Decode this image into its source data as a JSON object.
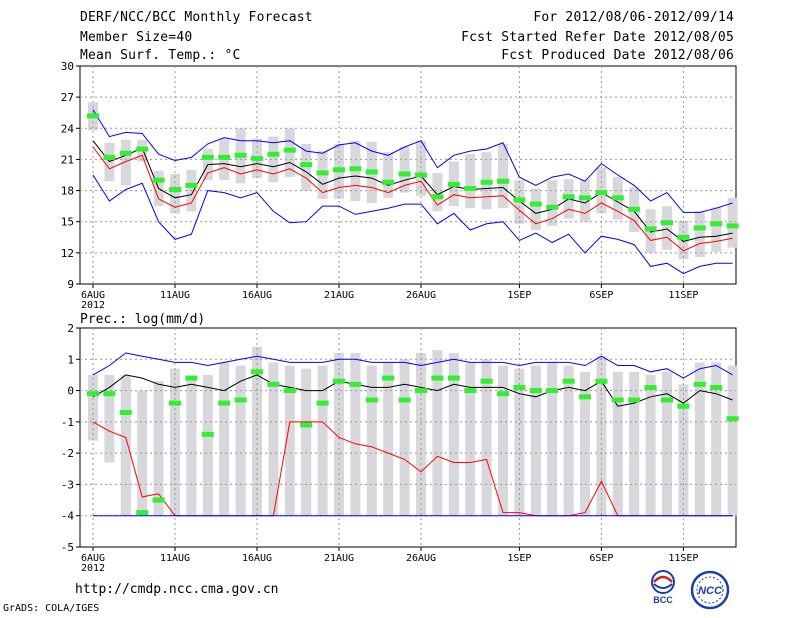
{
  "header": {
    "title": "DERF/NCC/BCC Monthly Forecast",
    "member_size": "Member Size=40",
    "variable": "Mean Surf. Temp.: °C",
    "period": "For 2012/08/06-2012/09/14",
    "start": "Fcst Started Refer Date 2012/08/05",
    "produced": "Fcst Produced Date 2012/08/06"
  },
  "footer": {
    "url": "http://cmdp.ncc.cma.gov.cn",
    "credit": "GrADS: COLA/IGES",
    "logo_left": "BCC",
    "logo_right": "NCC"
  },
  "colors": {
    "mean": "#000000",
    "upper": "#0000ff",
    "lower": "#ff0000",
    "obs": "#33ee33",
    "range": "#d8d8dc",
    "grid": "#999999"
  },
  "chart_data": [
    {
      "type": "line",
      "title": "Mean Surf. Temp.: °C",
      "ylim": [
        9,
        30
      ],
      "yticks": [
        9,
        12,
        15,
        18,
        21,
        24,
        27,
        30
      ],
      "xticks": [
        {
          "day": 0,
          "label": "6AUG",
          "sub": "2012"
        },
        {
          "day": 5,
          "label": "11AUG"
        },
        {
          "day": 10,
          "label": "16AUG"
        },
        {
          "day": 15,
          "label": "21AUG"
        },
        {
          "day": 20,
          "label": "26AUG"
        },
        {
          "day": 26,
          "label": "1SEP"
        },
        {
          "day": 31,
          "label": "6SEP"
        },
        {
          "day": 36,
          "label": "11SEP"
        }
      ],
      "days": 40,
      "series": [
        {
          "name": "mean",
          "values": [
            22.8,
            20.8,
            21.4,
            22.1,
            18.2,
            17.3,
            17.6,
            20.5,
            20.6,
            20.3,
            20.6,
            20.3,
            20.7,
            19.8,
            18.6,
            19.2,
            19.4,
            19.2,
            18.5,
            19.0,
            19.4,
            17.6,
            18.4,
            18.1,
            18.2,
            18.3,
            17.0,
            15.8,
            16.2,
            17.2,
            16.8,
            17.8,
            16.9,
            16.0,
            14.0,
            14.3,
            13.1,
            13.5,
            13.6,
            13.9
          ]
        },
        {
          "name": "upper",
          "values": [
            25.8,
            23.2,
            23.6,
            23.5,
            21.5,
            20.9,
            21.2,
            22.5,
            23.1,
            22.8,
            22.8,
            22.6,
            22.8,
            21.8,
            21.6,
            22.4,
            22.6,
            21.8,
            21.4,
            22.2,
            22.8,
            20.2,
            21.4,
            21.8,
            22.0,
            22.6,
            19.3,
            18.5,
            19.3,
            19.6,
            18.9,
            20.6,
            19.5,
            18.5,
            17.0,
            17.8,
            15.9,
            15.9,
            16.3,
            16.8
          ]
        },
        {
          "name": "lower",
          "values": [
            22.2,
            20.1,
            20.8,
            21.4,
            17.2,
            16.4,
            16.8,
            19.7,
            20.2,
            19.6,
            20.0,
            19.6,
            20.1,
            19.2,
            17.8,
            18.3,
            18.5,
            18.3,
            17.8,
            18.5,
            18.9,
            16.6,
            17.6,
            17.3,
            17.4,
            17.5,
            16.1,
            14.8,
            15.3,
            16.2,
            15.8,
            16.8,
            16.0,
            15.1,
            13.2,
            13.5,
            12.2,
            12.9,
            13.1,
            13.4
          ]
        },
        {
          "name": "min",
          "values": [
            19.5,
            17.0,
            18.1,
            18.7,
            15.0,
            13.3,
            13.8,
            18.0,
            17.8,
            17.3,
            17.8,
            16.0,
            14.9,
            15.0,
            16.5,
            16.5,
            15.7,
            16.0,
            16.3,
            16.7,
            16.7,
            14.8,
            15.8,
            14.2,
            14.8,
            15.0,
            13.2,
            13.9,
            13.0,
            13.8,
            12.0,
            13.6,
            13.3,
            12.8,
            10.7,
            11.0,
            10.0,
            10.7,
            11.0,
            11.0
          ]
        },
        {
          "name": "observed",
          "values": [
            25.2,
            21.2,
            21.6,
            22.0,
            19.0,
            18.1,
            18.5,
            21.2,
            21.2,
            21.4,
            21.1,
            21.5,
            21.9,
            20.5,
            19.7,
            20.0,
            20.1,
            19.8,
            18.8,
            19.6,
            19.5,
            17.4,
            18.6,
            18.2,
            18.8,
            18.9,
            17.1,
            16.7,
            16.4,
            17.4,
            17.3,
            17.8,
            17.3,
            16.2,
            14.3,
            14.9,
            13.5,
            14.4,
            14.8,
            14.6
          ]
        }
      ],
      "range_bars": {
        "lo": [
          23.8,
          18.9,
          18.5,
          20.8,
          16.5,
          15.8,
          16.0,
          19.0,
          19.0,
          18.7,
          19.2,
          18.8,
          19.3,
          18.0,
          17.2,
          17.2,
          17.0,
          16.8,
          17.3,
          17.8,
          17.5,
          16.0,
          16.5,
          16.3,
          16.2,
          16.3,
          14.8,
          14.2,
          14.6,
          15.3,
          15.0,
          15.8,
          15.2,
          14.0,
          12.0,
          12.3,
          11.4,
          11.6,
          12.1,
          12.5
        ],
        "hi": [
          26.5,
          22.6,
          22.9,
          22.9,
          19.9,
          19.6,
          20.0,
          22.0,
          23.0,
          24.0,
          23.0,
          23.2,
          24.0,
          22.5,
          21.8,
          22.5,
          22.8,
          22.7,
          21.7,
          22.2,
          22.8,
          19.7,
          20.8,
          21.5,
          21.7,
          22.5,
          19.0,
          18.2,
          19.0,
          19.1,
          19.0,
          20.2,
          19.3,
          18.3,
          16.2,
          16.5,
          15.1,
          16.0,
          16.4,
          17.3
        ]
      }
    },
    {
      "type": "line",
      "title": "Prec.: log(mm/d)",
      "ylim": [
        -5,
        2
      ],
      "yticks": [
        -5,
        -4,
        -3,
        -2,
        -1,
        0,
        1,
        2
      ],
      "days": 40,
      "series": [
        {
          "name": "upper",
          "values": [
            0.5,
            0.8,
            1.2,
            1.1,
            1.0,
            0.9,
            0.9,
            0.8,
            0.9,
            1.0,
            1.1,
            1.0,
            0.9,
            0.9,
            0.9,
            1.0,
            1.0,
            0.9,
            0.9,
            0.9,
            0.8,
            0.9,
            1.0,
            0.9,
            0.9,
            0.9,
            0.8,
            0.9,
            0.9,
            0.9,
            0.8,
            1.1,
            0.8,
            0.8,
            0.6,
            0.7,
            0.4,
            0.7,
            0.8,
            0.5
          ]
        },
        {
          "name": "mean",
          "values": [
            -0.2,
            0.1,
            0.5,
            0.4,
            0.2,
            0.1,
            0.2,
            0.1,
            0.0,
            0.3,
            0.5,
            0.2,
            0.1,
            0.0,
            0.0,
            0.3,
            0.2,
            0.1,
            0.1,
            0.2,
            0.1,
            0.0,
            0.2,
            0.1,
            0.1,
            0.1,
            -0.1,
            -0.2,
            0.0,
            0.1,
            0.0,
            0.3,
            -0.5,
            -0.4,
            -0.2,
            -0.1,
            -0.4,
            0.0,
            -0.1,
            -0.3
          ]
        },
        {
          "name": "lower",
          "values": [
            -1.0,
            -1.3,
            -1.5,
            -3.4,
            -3.3,
            -4.0,
            -4.0,
            -4.0,
            -4.0,
            -4.0,
            -4.0,
            -4.0,
            -1.0,
            -1.0,
            -1.0,
            -1.5,
            -1.7,
            -1.8,
            -2.0,
            -2.2,
            -2.6,
            -2.1,
            -2.3,
            -2.3,
            -2.2,
            -3.9,
            -3.9,
            -4.0,
            -4.0,
            -4.0,
            -3.9,
            -2.9,
            -4.0,
            -4.0,
            -4.0,
            -4.0,
            -4.0,
            -4.0,
            -4.0,
            -4.0
          ]
        },
        {
          "name": "min",
          "values": [
            -4.0,
            -4.0,
            -4.0,
            -4.0,
            -4.0,
            -4.0,
            -4.0,
            -4.0,
            -4.0,
            -4.0,
            -4.0,
            -4.0,
            -4.0,
            -4.0,
            -4.0,
            -4.0,
            -4.0,
            -4.0,
            -4.0,
            -4.0,
            -4.0,
            -4.0,
            -4.0,
            -4.0,
            -4.0,
            -4.0,
            -4.0,
            -4.0,
            -4.0,
            -4.0,
            -4.0,
            -4.0,
            -4.0,
            -4.0,
            -4.0,
            -4.0,
            -4.0,
            -4.0,
            -4.0,
            -4.0
          ]
        },
        {
          "name": "observed",
          "values": [
            -0.1,
            -0.1,
            -0.7,
            -3.9,
            -3.5,
            -0.4,
            0.4,
            -1.4,
            -0.4,
            -0.3,
            0.6,
            0.2,
            0.0,
            -1.1,
            -0.4,
            0.3,
            0.2,
            -0.3,
            0.4,
            -0.3,
            0.0,
            0.4,
            0.4,
            0.0,
            0.3,
            -0.1,
            0.1,
            0.0,
            0.0,
            0.3,
            -0.2,
            0.3,
            -0.3,
            -0.3,
            0.1,
            -0.3,
            -0.5,
            0.2,
            0.1,
            -0.9
          ]
        }
      ],
      "range_bars": {
        "lo": [
          -1.6,
          -2.3,
          -4.0,
          -4.0,
          -4.0,
          -4.0,
          -4.0,
          -4.0,
          -4.0,
          -4.0,
          -4.0,
          -4.0,
          -4.0,
          -4.0,
          -4.0,
          -4.0,
          -4.0,
          -4.0,
          -4.0,
          -4.0,
          -4.0,
          -4.0,
          -4.0,
          -4.0,
          -4.0,
          -4.0,
          -4.0,
          -4.0,
          -4.0,
          -4.0,
          -4.0,
          -4.0,
          -4.0,
          -4.0,
          -4.0,
          -4.0,
          -4.0,
          -4.0,
          -4.0,
          -4.0
        ],
        "hi": [
          0.5,
          0.5,
          0.5,
          0.0,
          0.3,
          0.7,
          0.4,
          0.5,
          0.9,
          0.8,
          1.4,
          0.9,
          0.8,
          0.7,
          0.8,
          1.2,
          1.2,
          0.8,
          0.9,
          1.0,
          1.2,
          1.3,
          1.2,
          0.9,
          1.0,
          0.8,
          0.7,
          0.8,
          0.9,
          0.8,
          0.6,
          1.1,
          0.6,
          0.6,
          0.5,
          0.6,
          0.2,
          0.9,
          0.9,
          0.8
        ]
      }
    }
  ]
}
